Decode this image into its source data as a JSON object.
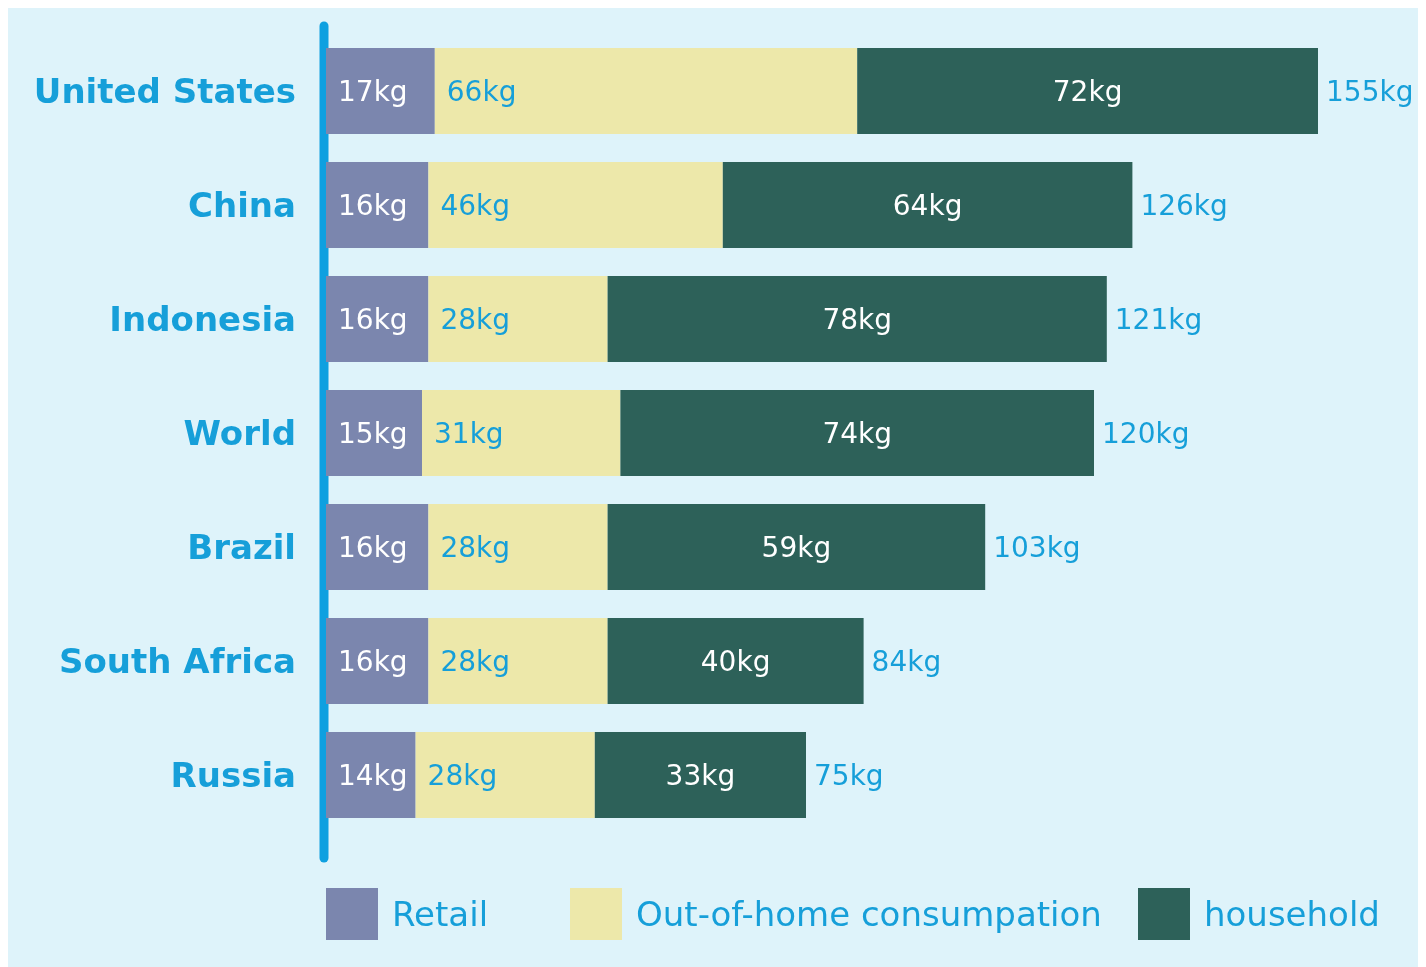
{
  "chart_data": {
    "type": "bar",
    "orientation": "horizontal",
    "stacked": true,
    "legend": "bottom",
    "categories": [
      "United States",
      "China",
      "Indonesia",
      "World",
      "Brazil",
      "South Africa",
      "Russia"
    ],
    "series": [
      {
        "name": "Retail",
        "color": "#7b86ae",
        "values": [
          17,
          16,
          16,
          15,
          16,
          16,
          14
        ],
        "value_labels": [
          "17kg",
          "16kg",
          "16kg",
          "15kg",
          "16kg",
          "16kg",
          "14kg"
        ]
      },
      {
        "name": "Out-of-home consumpation",
        "color": "#ede8aa",
        "values": [
          66,
          46,
          28,
          31,
          28,
          28,
          28
        ],
        "value_labels": [
          "66kg",
          "46kg",
          "28kg",
          "31kg",
          "28kg",
          "28kg",
          "28kg"
        ]
      },
      {
        "name": "household",
        "color": "#2d6159",
        "values": [
          72,
          64,
          78,
          74,
          59,
          40,
          33
        ],
        "value_labels": [
          "72kg",
          "64kg",
          "78kg",
          "74kg",
          "59kg",
          "40kg",
          "33kg"
        ]
      }
    ],
    "totals": [
      "155kg",
      "126kg",
      "121kg",
      "120kg",
      "103kg",
      "84kg",
      "75kg"
    ]
  }
}
